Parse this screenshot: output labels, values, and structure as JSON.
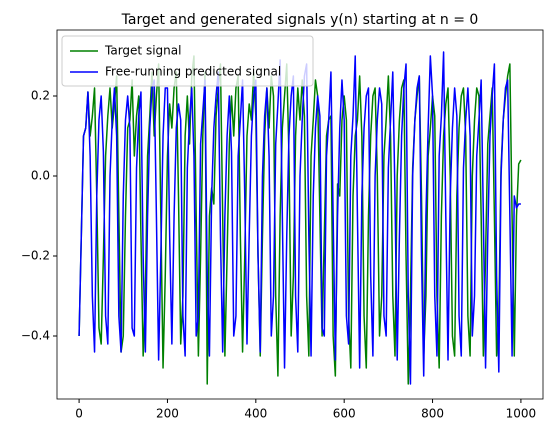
{
  "chart_data": {
    "type": "line",
    "title": "Target and generated signals y(n) starting at n = 0",
    "x": [
      0,
      5,
      10,
      15,
      20,
      25,
      30,
      35,
      40,
      45,
      50,
      55,
      60,
      65,
      70,
      75,
      80,
      85,
      90,
      95,
      100,
      105,
      110,
      115,
      120,
      125,
      130,
      135,
      140,
      145,
      150,
      155,
      160,
      165,
      170,
      175,
      180,
      185,
      190,
      195,
      200,
      205,
      210,
      215,
      220,
      225,
      230,
      235,
      240,
      245,
      250,
      255,
      260,
      265,
      270,
      275,
      280,
      285,
      290,
      295,
      300,
      305,
      310,
      315,
      320,
      325,
      330,
      335,
      340,
      345,
      350,
      355,
      360,
      365,
      370,
      375,
      380,
      385,
      390,
      395,
      400,
      405,
      410,
      415,
      420,
      425,
      430,
      435,
      440,
      445,
      450,
      455,
      460,
      465,
      470,
      475,
      480,
      485,
      490,
      495,
      500,
      505,
      510,
      515,
      520,
      525,
      530,
      535,
      540,
      545,
      550,
      555,
      560,
      565,
      570,
      575,
      580,
      585,
      590,
      595,
      600,
      605,
      610,
      615,
      620,
      625,
      630,
      635,
      640,
      645,
      650,
      655,
      660,
      665,
      670,
      675,
      680,
      685,
      690,
      695,
      700,
      705,
      710,
      715,
      720,
      725,
      730,
      735,
      740,
      745,
      750,
      755,
      760,
      765,
      770,
      775,
      780,
      785,
      790,
      795,
      800,
      805,
      810,
      815,
      820,
      825,
      830,
      835,
      840,
      845,
      850,
      855,
      860,
      865,
      870,
      875,
      880,
      885,
      890,
      895,
      900,
      905,
      910,
      915,
      920,
      925,
      930,
      935,
      940,
      945,
      950,
      955,
      960,
      965,
      970,
      975,
      980,
      985,
      990,
      995,
      1000
    ],
    "series": [
      {
        "name": "Target signal",
        "color": "#008000",
        "values": [
          -0.4,
          -0.15,
          0.1,
          0.12,
          0.21,
          0.1,
          0.15,
          0.22,
          -0.05,
          -0.38,
          -0.42,
          -0.2,
          0.05,
          0.15,
          0.22,
          0.12,
          0.18,
          0.25,
          -0.1,
          -0.44,
          -0.4,
          -0.1,
          0.12,
          0.14,
          0.24,
          0.05,
          0.15,
          0.2,
          -0.15,
          -0.45,
          -0.3,
          0.05,
          0.15,
          0.26,
          0.1,
          0.2,
          0.28,
          -0.1,
          -0.48,
          -0.25,
          0.05,
          0.18,
          0.12,
          0.22,
          0.26,
          -0.05,
          -0.42,
          -0.3,
          0.1,
          0.2,
          0.08,
          0.25,
          0.3,
          -0.1,
          -0.45,
          -0.2,
          0.1,
          0.26,
          -0.52,
          -0.1,
          -0.03,
          -0.07,
          0.15,
          0.22,
          0.28,
          -0.1,
          -0.45,
          -0.2,
          0.08,
          0.2,
          0.1,
          0.22,
          0.25,
          -0.15,
          -0.44,
          -0.2,
          0.1,
          0.18,
          0.14,
          0.26,
          0.15,
          -0.2,
          -0.45,
          -0.15,
          0.1,
          0.22,
          0.12,
          0.25,
          0.2,
          -0.3,
          -0.5,
          -0.1,
          0.12,
          0.2,
          0.28,
          0.05,
          -0.4,
          -0.25,
          0.1,
          0.22,
          0.14,
          0.24,
          0.15,
          -0.3,
          -0.45,
          0.05,
          0.14,
          0.24,
          0.2,
          -0.1,
          -0.4,
          -0.15,
          0.1,
          0.14,
          0.15,
          -0.4,
          -0.5,
          -0.02,
          -0.05,
          0.14,
          0.2,
          0.14,
          -0.35,
          -0.48,
          -0.05,
          0.1,
          0.14,
          0.25,
          0.1,
          -0.35,
          -0.48,
          -0.1,
          0.1,
          0.2,
          0.22,
          0.0,
          -0.4,
          -0.3,
          0.05,
          0.14,
          0.25,
          0.1,
          -0.3,
          -0.45,
          0.0,
          0.14,
          0.22,
          0.24,
          -0.2,
          -0.52,
          -0.3,
          0.02,
          0.14,
          0.2,
          0.25,
          -0.05,
          -0.45,
          -0.3,
          0.05,
          0.12,
          0.2,
          0.15,
          -0.3,
          -0.48,
          -0.1,
          0.1,
          0.18,
          0.22,
          0.0,
          -0.4,
          -0.45,
          -0.05,
          0.12,
          0.2,
          0.22,
          0.1,
          -0.35,
          -0.45,
          0.0,
          0.14,
          0.22,
          0.2,
          -0.1,
          -0.45,
          -0.2,
          0.08,
          0.15,
          0.22,
          -0.1,
          -0.45,
          -0.35,
          0.02,
          0.14,
          0.2,
          0.25,
          0.28,
          -0.1,
          -0.45,
          -0.1,
          0.03,
          0.04
        ]
      },
      {
        "name": "Free-running predicted signal",
        "color": "#0000ff",
        "values": [
          -0.4,
          -0.15,
          0.1,
          0.12,
          0.21,
          0.05,
          -0.3,
          -0.44,
          -0.05,
          0.14,
          0.2,
          0.06,
          -0.35,
          -0.42,
          0.0,
          0.14,
          0.22,
          0.1,
          -0.35,
          -0.44,
          -0.05,
          0.14,
          0.2,
          0.12,
          -0.38,
          -0.4,
          0.02,
          0.15,
          0.21,
          -0.2,
          -0.44,
          -0.1,
          0.12,
          0.22,
          0.24,
          -0.1,
          -0.46,
          -0.2,
          0.1,
          0.22,
          0.22,
          -0.15,
          -0.42,
          -0.1,
          0.12,
          0.18,
          0.14,
          -0.35,
          -0.45,
          0.02,
          0.14,
          0.22,
          0.05,
          -0.4,
          -0.35,
          0.08,
          0.16,
          0.24,
          -0.25,
          -0.45,
          -0.05,
          0.12,
          0.2,
          0.26,
          -0.15,
          -0.44,
          -0.1,
          0.1,
          0.2,
          0.06,
          -0.4,
          -0.35,
          0.05,
          0.14,
          0.24,
          -0.05,
          -0.42,
          -0.15,
          0.1,
          0.2,
          0.24,
          -0.2,
          -0.44,
          0.0,
          0.15,
          0.22,
          0.05,
          -0.4,
          -0.3,
          0.08,
          0.18,
          0.29,
          -0.1,
          -0.48,
          -0.15,
          0.1,
          0.2,
          0.25,
          -0.3,
          -0.44,
          0.0,
          0.14,
          0.25,
          0.28,
          -0.15,
          -0.45,
          -0.05,
          0.12,
          0.2,
          0.15,
          -0.38,
          -0.4,
          0.05,
          0.14,
          0.26,
          -0.1,
          -0.46,
          -0.1,
          0.12,
          0.24,
          0.14,
          -0.35,
          -0.42,
          0.05,
          0.15,
          0.3,
          -0.1,
          -0.48,
          -0.05,
          0.12,
          0.2,
          0.22,
          -0.25,
          -0.45,
          0.0,
          0.14,
          0.22,
          0.18,
          -0.35,
          -0.4,
          0.02,
          0.14,
          0.26,
          -0.05,
          -0.46,
          -0.15,
          0.1,
          0.22,
          0.28,
          -0.3,
          -0.52,
          0.0,
          0.14,
          0.22,
          0.25,
          -0.2,
          -0.5,
          -0.1,
          0.12,
          0.3,
          0.2,
          -0.3,
          -0.45,
          0.05,
          0.15,
          0.31,
          -0.1,
          -0.46,
          -0.05,
          0.12,
          0.22,
          0.15,
          -0.35,
          -0.45,
          0.02,
          0.14,
          0.22,
          0.1,
          -0.4,
          -0.3,
          0.05,
          0.14,
          0.24,
          -0.1,
          -0.48,
          -0.15,
          0.1,
          0.2,
          0.28,
          -0.25,
          -0.49,
          0.0,
          0.14,
          0.22,
          0.24,
          -0.1,
          -0.45,
          -0.05,
          -0.08,
          -0.07,
          -0.07
        ]
      }
    ],
    "xlim": [
      -50,
      1050
    ],
    "xticks": [
      0,
      200,
      400,
      600,
      800,
      1000
    ],
    "ylim": [
      -0.5575,
      0.365
    ],
    "yticks": [
      {
        "value": -0.4,
        "label": "−0.4"
      },
      {
        "value": -0.2,
        "label": "−0.2"
      },
      {
        "value": 0.0,
        "label": "0.0"
      },
      0.2
    ],
    "legend": "upper left"
  }
}
